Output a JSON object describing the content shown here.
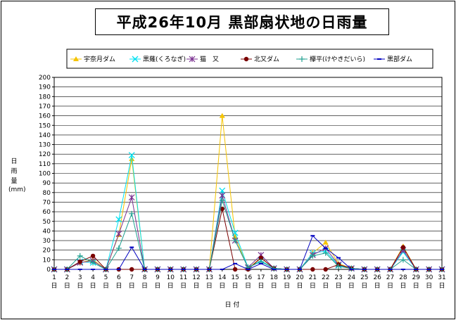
{
  "chart_data": {
    "type": "line",
    "title": "平成26年10月 黒部扇状地の日雨量",
    "ylabel": "日雨量",
    "ylabel_unit": "(mm)",
    "xlabel": "日 付",
    "x_suffix": "日",
    "ylim": [
      0,
      200
    ],
    "ytick_step": 10,
    "grid": "horizontal",
    "legend_position": "top",
    "categories": [
      "1",
      "2",
      "3",
      "4",
      "5",
      "6",
      "7",
      "8",
      "9",
      "10",
      "11",
      "12",
      "13",
      "14",
      "15",
      "16",
      "17",
      "18",
      "19",
      "20",
      "21",
      "22",
      "23",
      "24",
      "25",
      "26",
      "27",
      "28",
      "29",
      "30",
      "31"
    ],
    "series": [
      {
        "name": "宇奈月ダム",
        "color": "#f5c400",
        "marker": "triangle",
        "values": [
          0,
          0,
          7,
          10,
          0,
          36,
          115,
          0,
          0,
          0,
          0,
          0,
          0,
          160,
          34,
          1,
          12,
          1,
          0,
          0,
          17,
          28,
          6,
          1,
          0,
          0,
          0,
          24,
          0,
          0,
          0
        ]
      },
      {
        "name": "黒薙(くろなぎ)",
        "color": "#00e0f0",
        "marker": "x",
        "values": [
          0,
          0,
          8,
          7,
          0,
          52,
          119,
          0,
          0,
          0,
          0,
          0,
          0,
          82,
          38,
          2,
          9,
          1,
          0,
          0,
          17,
          19,
          4,
          1,
          0,
          0,
          0,
          18,
          0,
          0,
          0
        ]
      },
      {
        "name": "猫　又",
        "color": "#7a3090",
        "marker": "asterisk",
        "values": [
          0,
          0,
          7,
          9,
          0,
          37,
          75,
          0,
          0,
          0,
          0,
          0,
          0,
          77,
          30,
          2,
          15,
          1,
          0,
          0,
          15,
          22,
          5,
          1,
          0,
          0,
          0,
          20,
          0,
          0,
          0
        ]
      },
      {
        "name": "北又ダム",
        "color": "#7a0000",
        "marker": "circle",
        "values": [
          0,
          0,
          8,
          14,
          0,
          0,
          0,
          0,
          0,
          0,
          0,
          0,
          0,
          63,
          0,
          0,
          12,
          1,
          0,
          0,
          0,
          0,
          5,
          1,
          0,
          0,
          0,
          23,
          0,
          0,
          0
        ]
      },
      {
        "name": "欅平(けやきだいら)",
        "color": "#20a090",
        "marker": "plus",
        "values": [
          0,
          0,
          14,
          7,
          0,
          22,
          58,
          0,
          0,
          0,
          0,
          0,
          0,
          72,
          30,
          2,
          8,
          1,
          0,
          0,
          14,
          17,
          3,
          1,
          0,
          0,
          0,
          10,
          0,
          0,
          0
        ]
      },
      {
        "name": "黒部ダム",
        "color": "#0000c0",
        "marker": "dash",
        "values": [
          0,
          0,
          0,
          0,
          0,
          0,
          23,
          0,
          0,
          0,
          0,
          0,
          0,
          0,
          6,
          0,
          6,
          0,
          0,
          0,
          35,
          22,
          12,
          0,
          0,
          0,
          0,
          0,
          0,
          0,
          0
        ]
      }
    ]
  }
}
